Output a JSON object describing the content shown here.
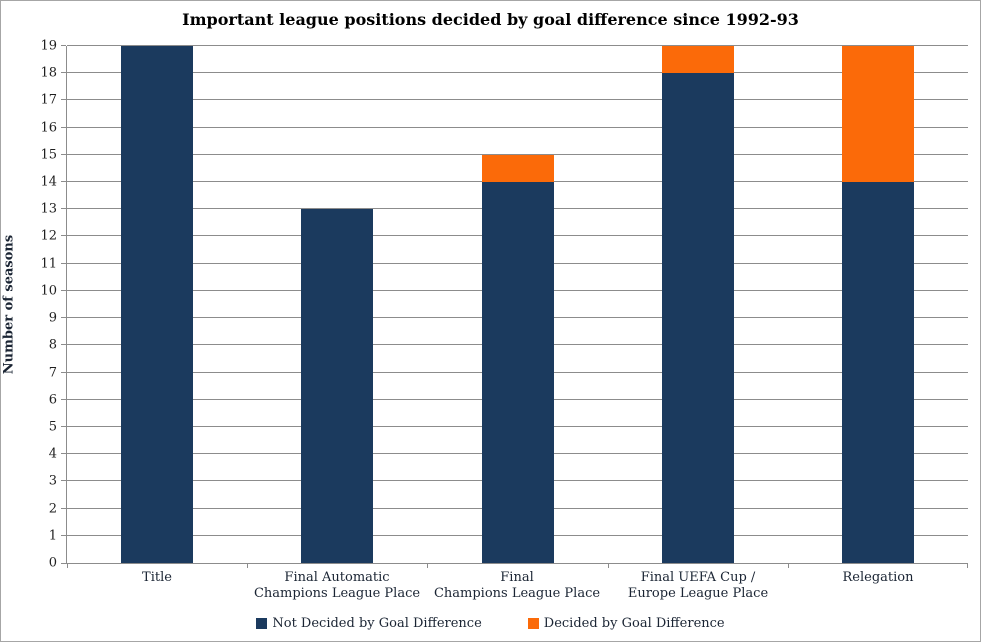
{
  "chart_data": {
    "type": "bar",
    "stacked": true,
    "title": "Important league positions decided by goal difference since 1992-93",
    "ylabel": "Number of seasons",
    "xlabel": "",
    "categories": [
      "Title",
      "Final Automatic\nChampions League Place",
      "Final\nChampions League Place",
      "Final UEFA Cup /\nEurope League Place",
      "Relegation"
    ],
    "series": [
      {
        "name": "Not Decided by Goal Difference",
        "color": "#1B3A5E",
        "values": [
          19,
          13,
          14,
          18,
          14
        ]
      },
      {
        "name": "Decided by Goal Difference",
        "color": "#FB6A09",
        "values": [
          0,
          0,
          1,
          1,
          5
        ]
      }
    ],
    "totals": [
      19,
      13,
      15,
      19,
      19
    ],
    "ylim": [
      0,
      19
    ],
    "ytick_step": 1,
    "grid": true,
    "gridline_color": "#8C8C8C",
    "legend_position": "bottom",
    "bar_width_fraction": 0.4
  }
}
